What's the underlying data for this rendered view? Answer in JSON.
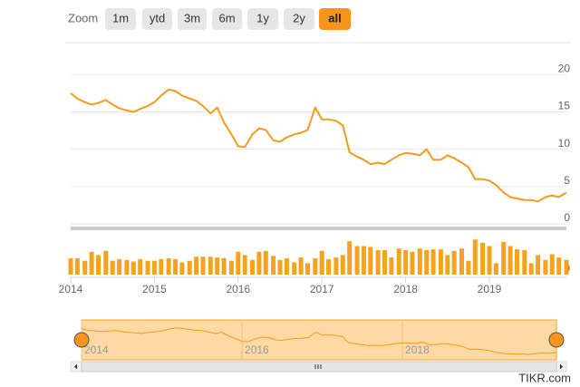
{
  "zoom": {
    "label": "Zoom",
    "buttons": [
      "1m",
      "ytd",
      "3m",
      "6m",
      "1y",
      "2y",
      "all"
    ],
    "active": 6
  },
  "watermark": "TIKR.com",
  "chart_data": {
    "type": "line",
    "x": [
      2014.0,
      2014.08,
      2014.17,
      2014.25,
      2014.33,
      2014.42,
      2014.5,
      2014.58,
      2014.67,
      2014.75,
      2014.83,
      2014.92,
      2015.0,
      2015.08,
      2015.17,
      2015.25,
      2015.33,
      2015.42,
      2015.5,
      2015.58,
      2015.67,
      2015.75,
      2015.83,
      2015.92,
      2016.0,
      2016.08,
      2016.17,
      2016.25,
      2016.33,
      2016.42,
      2016.5,
      2016.58,
      2016.67,
      2016.75,
      2016.83,
      2016.92,
      2017.0,
      2017.08,
      2017.17,
      2017.25,
      2017.33,
      2017.42,
      2017.5,
      2017.58,
      2017.67,
      2017.75,
      2017.83,
      2017.92,
      2018.0,
      2018.08,
      2018.17,
      2018.25,
      2018.33,
      2018.42,
      2018.5,
      2018.58,
      2018.67,
      2018.75,
      2018.83,
      2018.92,
      2019.0,
      2019.08,
      2019.17,
      2019.25,
      2019.33,
      2019.42,
      2019.5,
      2019.58,
      2019.67,
      2019.75,
      2019.83,
      2019.92
    ],
    "series": [
      {
        "color": "#f29b1c",
        "values": [
          17.5,
          16.8,
          16.3,
          16.0,
          16.2,
          16.6,
          16.0,
          15.5,
          15.2,
          15.0,
          15.4,
          15.8,
          16.3,
          17.2,
          18.0,
          17.8,
          17.2,
          16.8,
          16.5,
          15.8,
          14.8,
          15.6,
          13.6,
          12.0,
          10.4,
          10.3,
          12.0,
          12.8,
          12.6,
          11.2,
          11.0,
          11.6,
          12.0,
          12.2,
          12.6,
          15.6,
          14.0,
          14.0,
          13.8,
          13.2,
          9.6,
          9.0,
          8.6,
          8.0,
          8.2,
          8.0,
          8.6,
          9.2,
          9.5,
          9.4,
          9.2,
          10.0,
          8.6,
          8.6,
          9.2,
          8.8,
          8.2,
          7.6,
          6.0,
          6.0,
          5.8,
          5.2,
          4.2,
          3.6,
          3.4,
          3.2,
          3.2,
          3.0,
          3.6,
          3.8,
          3.6,
          4.2
        ]
      }
    ],
    "xlim": [
      2014,
      2019.92
    ],
    "xticks": [
      2014,
      2015,
      2016,
      2017,
      2018,
      2019
    ],
    "ylim": [
      0,
      21.5
    ],
    "yticks": [
      0,
      5,
      10,
      15,
      20
    ],
    "grid": true,
    "volume": {
      "type": "bar",
      "color": "#f5a31e",
      "ylim": [
        0,
        50
      ],
      "yticks": [
        0
      ],
      "values": [
        20,
        20,
        17,
        28,
        24,
        29,
        17,
        19,
        18,
        16,
        19,
        17,
        17,
        19,
        20,
        19,
        15,
        17,
        22,
        22,
        22,
        21,
        20,
        17,
        28,
        24,
        18,
        28,
        29,
        23,
        18,
        20,
        15,
        21,
        14,
        20,
        29,
        19,
        21,
        24,
        41,
        35,
        35,
        34,
        30,
        30,
        21,
        32,
        30,
        28,
        32,
        30,
        31,
        31,
        24,
        29,
        32,
        17,
        43,
        39,
        35,
        14,
        40,
        35,
        31,
        30,
        14,
        24,
        18,
        25,
        21,
        18
      ]
    },
    "navigator_ticks": [
      2014,
      2016,
      2018
    ]
  }
}
